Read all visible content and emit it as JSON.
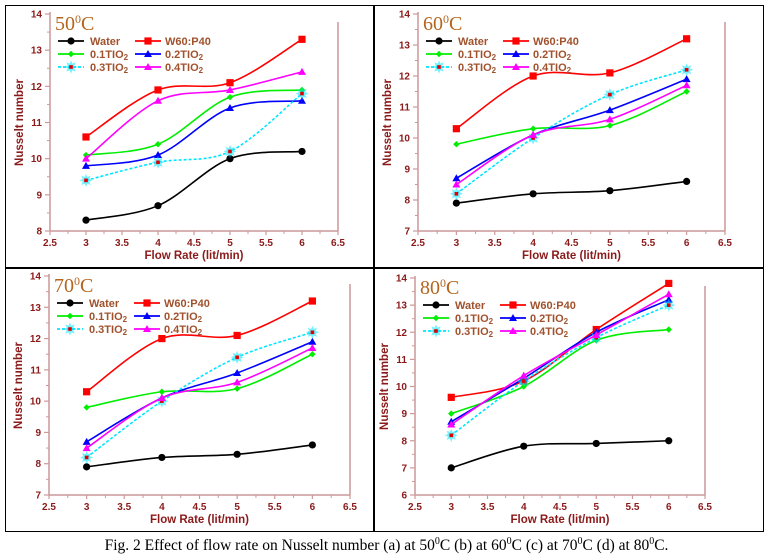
{
  "caption": {
    "prefix": "Fig. 2 Effect of flow rate on Nusselt number (a) at 50",
    "parts": [
      "C (b) at 60",
      "C (c) at 70",
      "C (d) at 80",
      "C."
    ],
    "sup": "0"
  },
  "series_styles": [
    {
      "name": "Water",
      "color": "#000000",
      "marker": "circle",
      "dashed": false
    },
    {
      "name": "W60:P40",
      "color": "#ff0000",
      "marker": "square",
      "dashed": false
    },
    {
      "name": "0.1TIO2",
      "color": "#00ee00",
      "marker": "diamond",
      "dashed": false
    },
    {
      "name": "0.2TIO2",
      "color": "#0000ff",
      "marker": "triangle",
      "dashed": false
    },
    {
      "name": "0.3TIO2",
      "color": "#00e5ff",
      "marker": "star",
      "dashed": true
    },
    {
      "name": "0.4TIO2",
      "color": "#ff00ff",
      "marker": "triangle",
      "dashed": false
    }
  ],
  "legend_labels": {
    "water": "Water",
    "w60p40": "W60:P40",
    "tio01": "0.1TIO",
    "tio02": "0.2TIO",
    "tio03": "0.3TIO",
    "tio04": "0.4TIO",
    "subscript": "2"
  },
  "chart_data": [
    {
      "type": "line",
      "panel": "a",
      "title": "50°C",
      "title_main": "50",
      "title_sup": "0",
      "title_unit": "C",
      "xlabel": "Flow Rate (lit/min)",
      "ylabel": "Nusselt number",
      "xlim": [
        2.5,
        6.5
      ],
      "ylim": [
        8,
        14
      ],
      "xticks": [
        "2.5",
        "3",
        "3.5",
        "4",
        "4.5",
        "5",
        "5.5",
        "6",
        "6.5"
      ],
      "yticks": [
        "8",
        "9",
        "10",
        "11",
        "12",
        "13",
        "14"
      ],
      "legend": "top-left",
      "x": [
        3,
        4,
        5,
        6
      ],
      "series": [
        {
          "name": "Water",
          "values": [
            8.3,
            8.7,
            10.0,
            10.2
          ]
        },
        {
          "name": "W60:P40",
          "values": [
            10.6,
            11.9,
            12.1,
            13.3
          ]
        },
        {
          "name": "0.1TIO2",
          "values": [
            10.1,
            10.4,
            11.7,
            11.9
          ]
        },
        {
          "name": "0.2TIO2",
          "values": [
            9.8,
            10.1,
            11.4,
            11.6
          ]
        },
        {
          "name": "0.3TIO2",
          "values": [
            9.4,
            9.9,
            10.2,
            11.8
          ]
        },
        {
          "name": "0.4TIO2",
          "values": [
            10.0,
            11.6,
            11.9,
            12.4
          ]
        }
      ]
    },
    {
      "type": "line",
      "panel": "b",
      "title": "60°C",
      "title_main": "60",
      "title_sup": "0",
      "title_unit": "C",
      "xlabel": "Flow Rate (lit/min)",
      "ylabel": "Nusselt number",
      "xlim": [
        2.5,
        6.5
      ],
      "ylim": [
        7,
        14
      ],
      "xticks": [
        "2.5",
        "3",
        "3.5",
        "4",
        "4.5",
        "5",
        "5.5",
        "6",
        "6.5"
      ],
      "yticks": [
        "7",
        "8",
        "9",
        "10",
        "11",
        "12",
        "13",
        "14"
      ],
      "legend": "top-left",
      "x": [
        3,
        4,
        5,
        6
      ],
      "series": [
        {
          "name": "Water",
          "values": [
            7.9,
            8.2,
            8.3,
            8.6
          ]
        },
        {
          "name": "W60:P40",
          "values": [
            10.3,
            12.0,
            12.1,
            13.2
          ]
        },
        {
          "name": "0.1TIO2",
          "values": [
            9.8,
            10.3,
            10.4,
            11.5
          ]
        },
        {
          "name": "0.2TIO2",
          "values": [
            8.7,
            10.1,
            10.9,
            11.9
          ]
        },
        {
          "name": "0.3TIO2",
          "values": [
            8.2,
            10.0,
            11.4,
            12.2
          ]
        },
        {
          "name": "0.4TIO2",
          "values": [
            8.5,
            10.1,
            10.6,
            11.7
          ]
        }
      ]
    },
    {
      "type": "line",
      "panel": "c",
      "title": "70°C",
      "title_main": "70",
      "title_sup": "0",
      "title_unit": "C",
      "xlabel": "Flow Rate (lit/min)",
      "ylabel": "Nusselt number",
      "xlim": [
        2.5,
        6.5
      ],
      "ylim": [
        7,
        14
      ],
      "xticks": [
        "2.5",
        "3",
        "3.5",
        "4",
        "4.5",
        "5",
        "5.5",
        "6",
        "6.5"
      ],
      "yticks": [
        "7",
        "8",
        "9",
        "10",
        "11",
        "12",
        "13",
        "14"
      ],
      "legend": "top-left",
      "x": [
        3,
        4,
        5,
        6
      ],
      "series": [
        {
          "name": "Water",
          "values": [
            7.9,
            8.2,
            8.3,
            8.6
          ]
        },
        {
          "name": "W60:P40",
          "values": [
            10.3,
            12.0,
            12.1,
            13.2
          ]
        },
        {
          "name": "0.1TIO2",
          "values": [
            9.8,
            10.3,
            10.4,
            11.5
          ]
        },
        {
          "name": "0.2TIO2",
          "values": [
            8.7,
            10.1,
            10.9,
            11.9
          ]
        },
        {
          "name": "0.3TIO2",
          "values": [
            8.2,
            10.0,
            11.4,
            12.2
          ]
        },
        {
          "name": "0.4TIO2",
          "values": [
            8.5,
            10.1,
            10.6,
            11.7
          ]
        }
      ]
    },
    {
      "type": "line",
      "panel": "d",
      "title": "80°C",
      "title_main": "80",
      "title_sup": "0",
      "title_unit": "C",
      "xlabel": "Flow Rate (lit/min)",
      "ylabel": "Nusselt number",
      "xlim": [
        2.5,
        6.5
      ],
      "ylim": [
        6,
        14
      ],
      "xticks": [
        "2.5",
        "3",
        "3.5",
        "4",
        "4.5",
        "5",
        "5.5",
        "6",
        "6.5"
      ],
      "yticks": [
        "6",
        "7",
        "8",
        "9",
        "10",
        "11",
        "12",
        "13",
        "14"
      ],
      "legend": "top-left",
      "x": [
        3,
        4,
        5,
        6
      ],
      "series": [
        {
          "name": "Water",
          "values": [
            7.0,
            7.8,
            7.9,
            8.0
          ]
        },
        {
          "name": "W60:P40",
          "values": [
            9.6,
            10.2,
            12.1,
            13.8
          ]
        },
        {
          "name": "0.1TIO2",
          "values": [
            9.0,
            10.0,
            11.7,
            12.1
          ]
        },
        {
          "name": "0.2TIO2",
          "values": [
            8.7,
            10.3,
            12.0,
            13.2
          ]
        },
        {
          "name": "0.3TIO2",
          "values": [
            8.2,
            10.2,
            11.8,
            13.0
          ]
        },
        {
          "name": "0.4TIO2",
          "values": [
            8.6,
            10.4,
            11.9,
            13.4
          ]
        }
      ]
    }
  ]
}
